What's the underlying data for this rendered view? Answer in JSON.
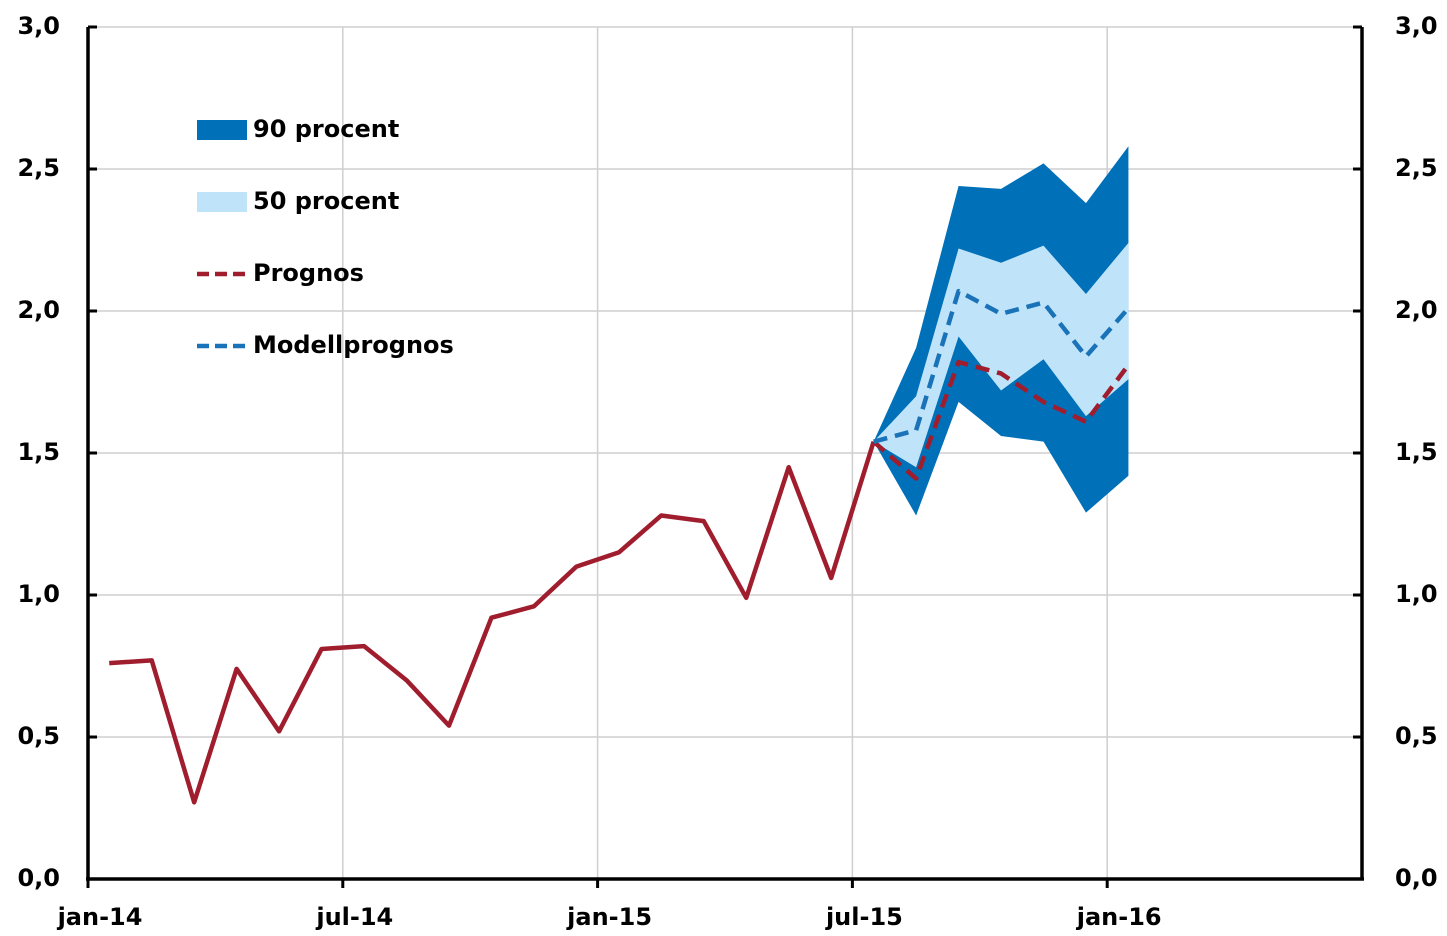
{
  "chart_data": {
    "type": "line",
    "x": [
      0.5,
      1.5,
      2.5,
      3.5,
      4.5,
      5.5,
      6.5,
      7.5,
      8.5,
      9.5,
      10.5,
      11.5,
      12.5,
      13.5,
      14.5,
      15.5,
      16.5,
      17.5,
      18.5,
      19.5,
      20.5,
      21.5,
      22.5,
      23.5,
      24.5
    ],
    "xlim": [
      0,
      30
    ],
    "xticks": [
      {
        "value": 0,
        "label": "jan-14"
      },
      {
        "value": 6,
        "label": "jul-14"
      },
      {
        "value": 12,
        "label": "jan-15"
      },
      {
        "value": 18,
        "label": "jul-15"
      },
      {
        "value": 24,
        "label": "jan-16"
      }
    ],
    "ylim": [
      0,
      3
    ],
    "yticks": [
      {
        "value": 0,
        "label": "0,0"
      },
      {
        "value": 0.5,
        "label": "0,5"
      },
      {
        "value": 1,
        "label": "1,0"
      },
      {
        "value": 1.5,
        "label": "1,5"
      },
      {
        "value": 2,
        "label": "2,0"
      },
      {
        "value": 2.5,
        "label": "2,5"
      },
      {
        "value": 3,
        "label": "3,0"
      }
    ],
    "y2lim": [
      0,
      3
    ],
    "y2ticks": [
      {
        "value": 0,
        "label": "0,0"
      },
      {
        "value": 0.5,
        "label": "0,5"
      },
      {
        "value": 1,
        "label": "1,0"
      },
      {
        "value": 1.5,
        "label": "1,5"
      },
      {
        "value": 2,
        "label": "2,0"
      },
      {
        "value": 2.5,
        "label": "2,5"
      },
      {
        "value": 3,
        "label": "3,0"
      }
    ],
    "grid": true,
    "bands": [
      {
        "name": "90 procent",
        "color": "#0070b8",
        "lower": [
          null,
          null,
          null,
          null,
          null,
          null,
          null,
          null,
          null,
          null,
          null,
          null,
          null,
          null,
          null,
          null,
          null,
          null,
          1.54,
          1.28,
          1.68,
          1.56,
          1.54,
          1.29,
          1.42
        ],
        "upper": [
          null,
          null,
          null,
          null,
          null,
          null,
          null,
          null,
          null,
          null,
          null,
          null,
          null,
          null,
          null,
          null,
          null,
          null,
          1.54,
          1.87,
          2.44,
          2.43,
          2.52,
          2.38,
          2.58
        ]
      },
      {
        "name": "50 procent",
        "color": "#bfe4fa",
        "lower": [
          null,
          null,
          null,
          null,
          null,
          null,
          null,
          null,
          null,
          null,
          null,
          null,
          null,
          null,
          null,
          null,
          null,
          null,
          1.54,
          1.45,
          1.91,
          1.72,
          1.83,
          1.63,
          1.76
        ],
        "upper": [
          null,
          null,
          null,
          null,
          null,
          null,
          null,
          null,
          null,
          null,
          null,
          null,
          null,
          null,
          null,
          null,
          null,
          null,
          1.54,
          1.7,
          2.22,
          2.17,
          2.23,
          2.06,
          2.24
        ]
      }
    ],
    "series": [
      {
        "color": "#a01d2e",
        "dashed": false,
        "values": [
          0.76,
          0.77,
          0.27,
          0.74,
          0.52,
          0.81,
          0.82,
          0.7,
          0.54,
          0.92,
          0.96,
          1.1,
          1.15,
          1.28,
          1.26,
          0.99,
          1.45,
          1.06,
          1.54,
          null,
          null,
          null,
          null,
          null,
          null
        ]
      },
      {
        "name": "Prognos",
        "color": "#a01d2e",
        "dashed": true,
        "values": [
          null,
          null,
          null,
          null,
          null,
          null,
          null,
          null,
          null,
          null,
          null,
          null,
          null,
          null,
          null,
          null,
          null,
          null,
          1.54,
          1.41,
          1.82,
          1.78,
          1.68,
          1.61,
          1.81
        ]
      },
      {
        "name": "Modellprognos",
        "color": "#1a73b8",
        "dashed": true,
        "values": [
          null,
          null,
          null,
          null,
          null,
          null,
          null,
          null,
          null,
          null,
          null,
          null,
          null,
          null,
          null,
          null,
          null,
          null,
          1.54,
          1.58,
          2.07,
          1.99,
          2.03,
          1.84,
          2.01
        ]
      }
    ]
  }
}
